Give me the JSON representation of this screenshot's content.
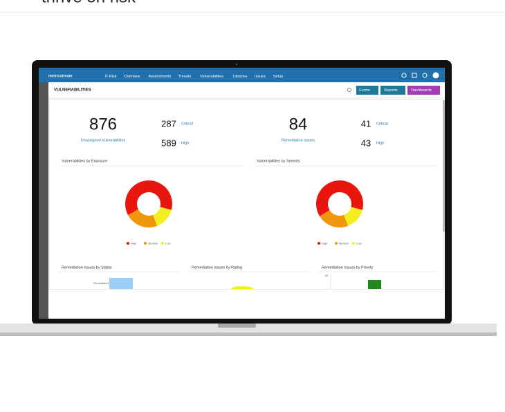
{
  "header": {
    "title": "thrive on risk"
  },
  "app": {
    "brand": "metricstream",
    "nav": [
      "IT-Risk",
      "Overview",
      "Assessments",
      "Threats",
      "Vulnerabilities",
      "Libraries",
      "Issues",
      "Setup"
    ],
    "page_title": "VULNERABILITIES",
    "buttons": [
      "Forms",
      "Reports",
      "Dashboards"
    ],
    "summary": [
      {
        "total": "876",
        "total_label": "Unassigned Vulnerabilities",
        "items": [
          {
            "value": "287",
            "label": "Critical"
          },
          {
            "value": "589",
            "label": "High"
          }
        ]
      },
      {
        "total": "84",
        "total_label": "Remediation Issues",
        "items": [
          {
            "value": "41",
            "label": "Critical"
          },
          {
            "value": "43",
            "label": "High"
          }
        ]
      }
    ],
    "donuts": [
      {
        "type": "pie",
        "title": "Vulnerabilities by Exposure",
        "categories": [
          "High",
          "Medium",
          "Low"
        ],
        "values": [
          62,
          23,
          15
        ],
        "colors": [
          "#e8160c",
          "#f0960f",
          "#f2ee1f"
        ]
      },
      {
        "type": "pie",
        "title": "Vulnerabilities by Severity",
        "categories": [
          "High",
          "Medium",
          "Low"
        ],
        "values": [
          63,
          22,
          15
        ],
        "colors": [
          "#e8160c",
          "#f0960f",
          "#f2ee1f"
        ]
      }
    ],
    "bottom_panels": [
      {
        "title": "Remediation Issues by Status",
        "label": "Remediated"
      },
      {
        "title": "Remediation Issues by Rating"
      },
      {
        "title": "Remediation Issues by Priority",
        "label": "80"
      }
    ]
  }
}
